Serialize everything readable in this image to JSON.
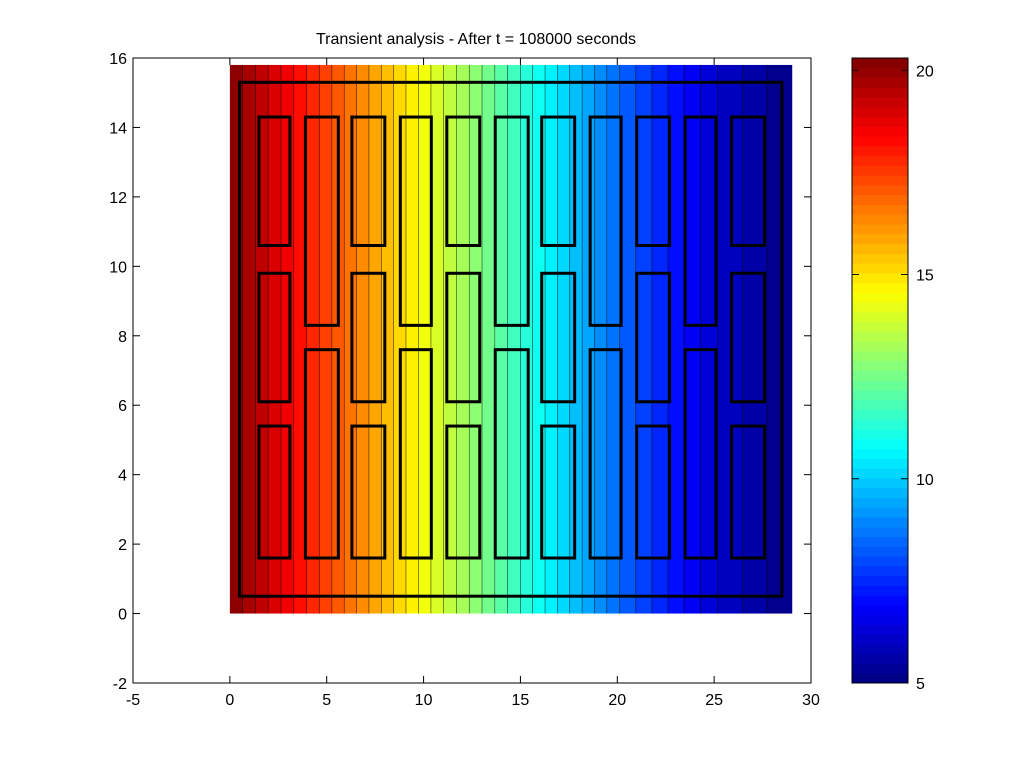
{
  "chart_data": {
    "type": "heatmap",
    "title": "Transient analysis - After t = 108000 seconds",
    "xlabel": "",
    "ylabel": "",
    "xlim": [
      -5,
      30
    ],
    "ylim": [
      -2,
      16
    ],
    "x_ticks": [
      -5,
      0,
      5,
      10,
      15,
      20,
      25,
      30
    ],
    "y_ticks": [
      -2,
      0,
      2,
      4,
      6,
      8,
      10,
      12,
      14,
      16
    ],
    "grid": false,
    "colormap": "jet",
    "domain": {
      "x": [
        0,
        29
      ],
      "y": [
        0,
        15.8
      ]
    },
    "temperature_range": [
      5,
      20.3
    ],
    "temperature_profile": {
      "x": [
        0,
        5,
        10,
        15,
        20,
        25,
        29
      ],
      "value": [
        20.3,
        17.4,
        14.4,
        11.5,
        8.5,
        6.2,
        5
      ]
    },
    "contour_levels": 40,
    "outer_boundary": {
      "x": [
        0.5,
        28.5
      ],
      "y": [
        0.5,
        15.3
      ]
    },
    "blocks": [
      {
        "x": [
          1.5,
          3.1
        ],
        "y": [
          1.6,
          5.4
        ]
      },
      {
        "x": [
          1.5,
          3.1
        ],
        "y": [
          6.1,
          9.8
        ]
      },
      {
        "x": [
          1.5,
          3.1
        ],
        "y": [
          10.6,
          14.3
        ]
      },
      {
        "x": [
          3.9,
          5.6
        ],
        "y": [
          1.6,
          7.6
        ]
      },
      {
        "x": [
          3.9,
          5.6
        ],
        "y": [
          8.3,
          14.3
        ]
      },
      {
        "x": [
          6.3,
          8.0
        ],
        "y": [
          1.6,
          5.4
        ]
      },
      {
        "x": [
          6.3,
          8.0
        ],
        "y": [
          6.1,
          9.8
        ]
      },
      {
        "x": [
          6.3,
          8.0
        ],
        "y": [
          10.6,
          14.3
        ]
      },
      {
        "x": [
          8.8,
          10.4
        ],
        "y": [
          1.6,
          7.6
        ]
      },
      {
        "x": [
          8.8,
          10.4
        ],
        "y": [
          8.3,
          14.3
        ]
      },
      {
        "x": [
          11.2,
          12.9
        ],
        "y": [
          1.6,
          5.4
        ]
      },
      {
        "x": [
          11.2,
          12.9
        ],
        "y": [
          6.1,
          9.8
        ]
      },
      {
        "x": [
          11.2,
          12.9
        ],
        "y": [
          10.6,
          14.3
        ]
      },
      {
        "x": [
          13.7,
          15.4
        ],
        "y": [
          1.6,
          7.6
        ]
      },
      {
        "x": [
          13.7,
          15.4
        ],
        "y": [
          8.3,
          14.3
        ]
      },
      {
        "x": [
          16.1,
          17.8
        ],
        "y": [
          1.6,
          5.4
        ]
      },
      {
        "x": [
          16.1,
          17.8
        ],
        "y": [
          6.1,
          9.8
        ]
      },
      {
        "x": [
          16.1,
          17.8
        ],
        "y": [
          10.6,
          14.3
        ]
      },
      {
        "x": [
          18.6,
          20.2
        ],
        "y": [
          1.6,
          7.6
        ]
      },
      {
        "x": [
          18.6,
          20.2
        ],
        "y": [
          8.3,
          14.3
        ]
      },
      {
        "x": [
          21.0,
          22.7
        ],
        "y": [
          1.6,
          5.4
        ]
      },
      {
        "x": [
          21.0,
          22.7
        ],
        "y": [
          6.1,
          9.8
        ]
      },
      {
        "x": [
          21.0,
          22.7
        ],
        "y": [
          10.6,
          14.3
        ]
      },
      {
        "x": [
          23.5,
          25.1
        ],
        "y": [
          1.6,
          7.6
        ]
      },
      {
        "x": [
          23.5,
          25.1
        ],
        "y": [
          8.3,
          14.3
        ]
      },
      {
        "x": [
          25.9,
          27.6
        ],
        "y": [
          1.6,
          5.4
        ]
      },
      {
        "x": [
          25.9,
          27.6
        ],
        "y": [
          6.1,
          9.8
        ]
      },
      {
        "x": [
          25.9,
          27.6
        ],
        "y": [
          10.6,
          14.3
        ]
      }
    ],
    "colorbar": {
      "range": [
        5,
        20.3
      ],
      "ticks": [
        5,
        10,
        15,
        20
      ]
    }
  }
}
